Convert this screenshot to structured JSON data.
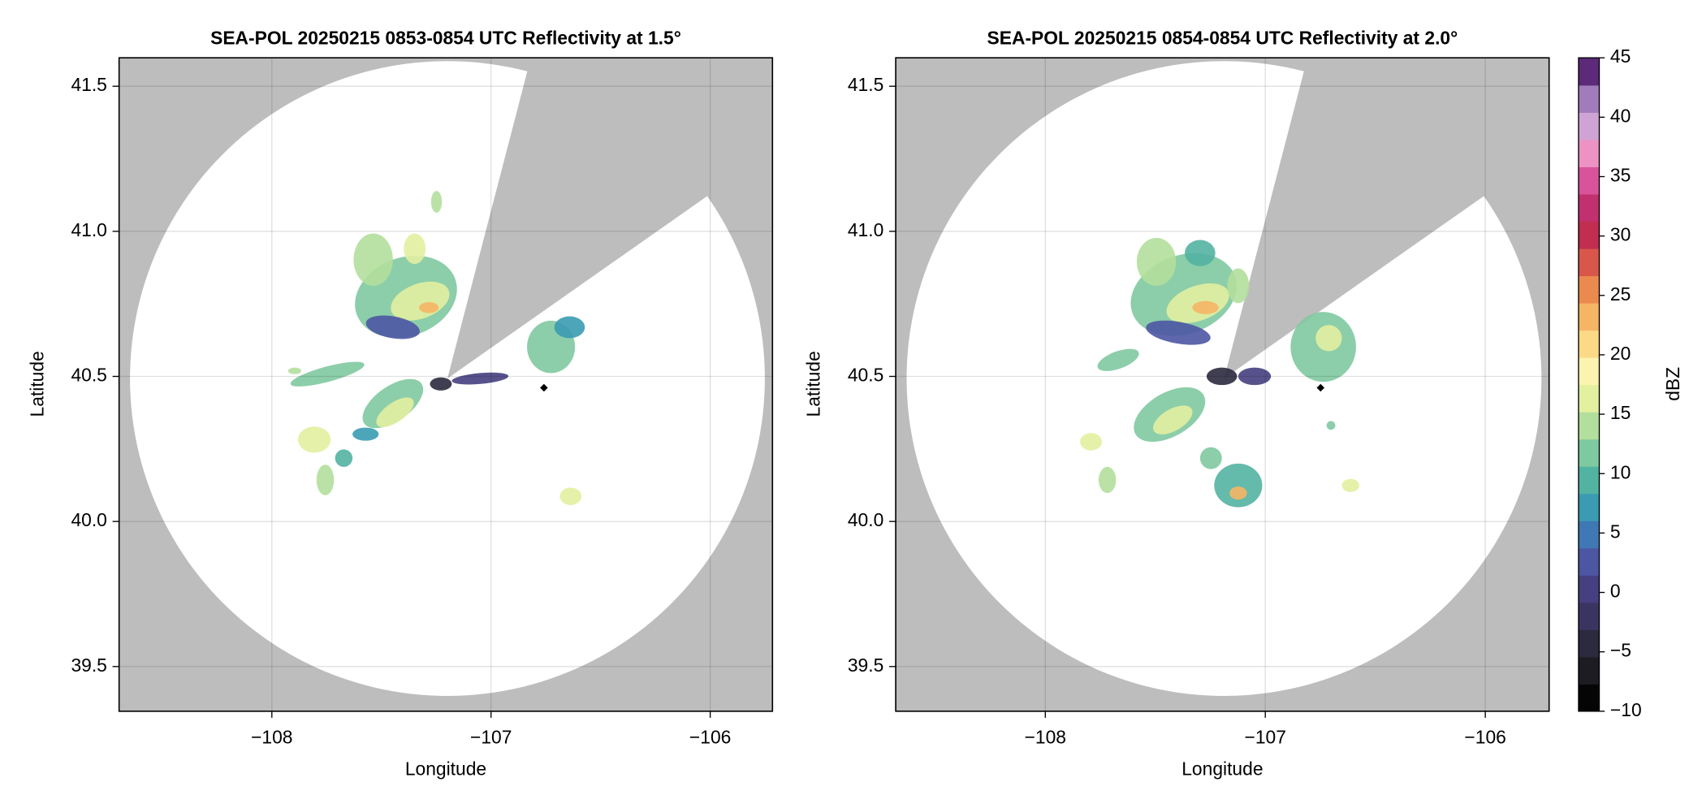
{
  "chart_data": [
    {
      "type": "map",
      "title": "SEA-POL 20250215 0853-0854 UTC Reflectivity at 1.5°",
      "xlabel": "Longitude",
      "ylabel": "Latitude",
      "xlim": [
        -108.697,
        -105.716
      ],
      "ylim": [
        39.346,
        41.598
      ],
      "xticks": [
        {
          "value": -108,
          "label": "−108"
        },
        {
          "value": -107,
          "label": "−107"
        },
        {
          "value": -106,
          "label": "−106"
        }
      ],
      "yticks": [
        39.5,
        {
          "value": 40.0,
          "label": "40.0"
        },
        40.5,
        {
          "value": 41.0,
          "label": "41.0"
        },
        41.5
      ],
      "grid": true
    },
    {
      "type": "map",
      "title": "SEA-POL 20250215 0854-0854 UTC Reflectivity at 2.0°",
      "xlabel": "Longitude",
      "ylabel": "Latitude",
      "xlim": [
        -108.68,
        -105.71
      ],
      "ylim": [
        39.346,
        41.598
      ],
      "xticks": [
        {
          "value": -108,
          "label": "−108"
        },
        {
          "value": -107,
          "label": "−107"
        },
        {
          "value": -106,
          "label": "−106"
        }
      ],
      "yticks": [
        39.5,
        {
          "value": 40.0,
          "label": "40.0"
        },
        40.5,
        {
          "value": 41.0,
          "label": "41.0"
        },
        41.5
      ],
      "grid": true
    },
    {
      "type": "colorbar",
      "label": "dBZ",
      "clim": [
        -10,
        45
      ],
      "ticks": [
        {
          "value": -10,
          "label": "−10"
        },
        {
          "value": -5,
          "label": "−5"
        },
        0,
        5,
        10,
        15,
        20,
        25,
        30,
        35,
        40,
        45
      ],
      "colors": [
        "#050505",
        "#1c1c22",
        "#2b2a3e",
        "#3a3560",
        "#463f80",
        "#4d56a3",
        "#3f78b4",
        "#3a9bb3",
        "#53b3a2",
        "#7fc9a0",
        "#b3df9c",
        "#e2f0a0",
        "#fbf3b0",
        "#fcd986",
        "#f6b565",
        "#ea8a4f",
        "#d8574a",
        "#c02e50",
        "#c1306f",
        "#d9539a",
        "#ec93c4",
        "#cfa4d4",
        "#a07cbc",
        "#5c2a78"
      ]
    }
  ]
}
